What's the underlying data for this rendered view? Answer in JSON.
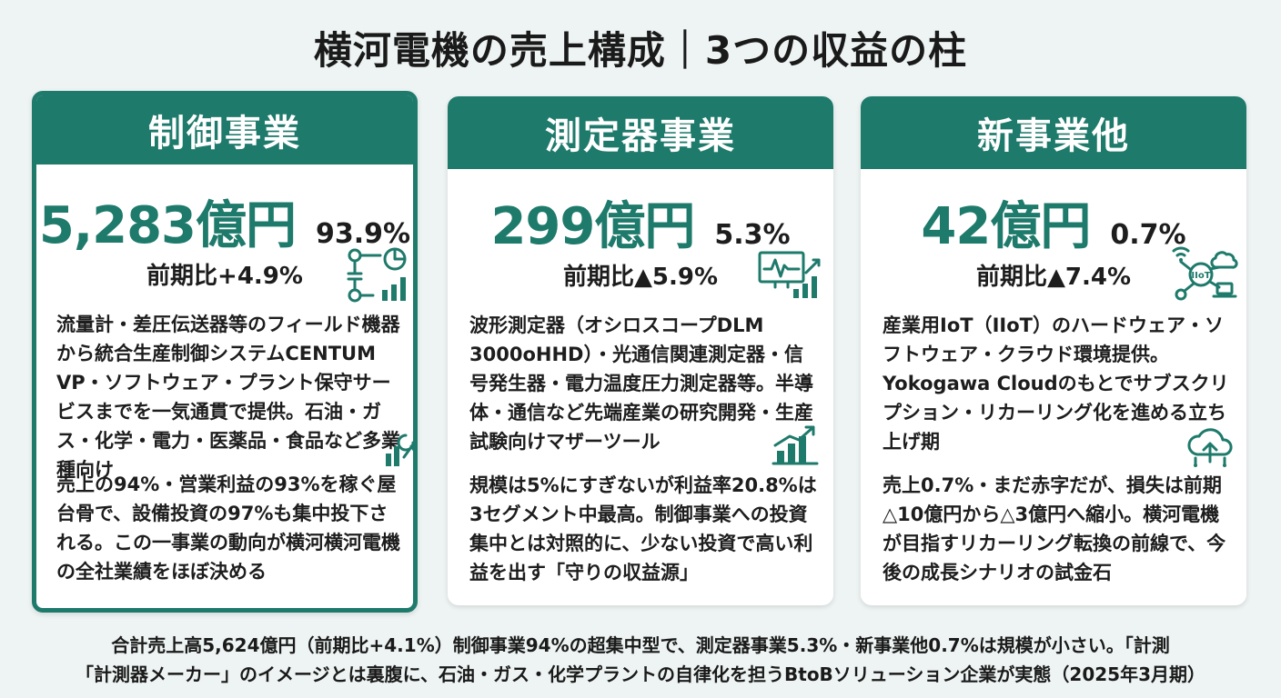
{
  "title": "横河電機の売上構成｜3つの収益の柱",
  "segments": [
    {
      "name": "制御事業",
      "sales": "5,283億円",
      "share": "93.9%",
      "growth": "前期比+4.9%",
      "description": "流量計・差圧伝送器等のフィールド機器から統合生産制御システムCENTUM VP・ソフトウェア・プラント保守サービスまでを一気通貫で提供。石油・ガス・化学・電力・医薬品・食品など多業種向け",
      "note": "売上の94%・営業利益の93%を稼ぐ屋台骨で、設備投資の97%も集中投下される。この一事業の動向が横河横河電機の全社業績をほぼ決める",
      "icons": [
        "flow-diagram-icon",
        "tools-icon"
      ]
    },
    {
      "name": "測定器事業",
      "sales": "299億円",
      "share": "5.3%",
      "growth": "前期比▲5.9%",
      "description": "波形測定器（オシロスコープDLM 3000oHHD）・光通信関連測定器・信号発生器・電力温度圧力測定器等。半導体・通信など先端産業の研究開発・生産試験向けマザーツール",
      "note": "規模は5%にすぎないが利益率20.8%は3セグメント中最高。制御事業への投資集中とは対照的に、少ない投資で高い利益を出す「守りの収益源」",
      "icons": [
        "waveform-monitor-icon",
        "growth-chart-icon"
      ]
    },
    {
      "name": "新事業他",
      "sales": "42億円",
      "share": "0.7%",
      "growth": "前期比▲7.4%",
      "description": "産業用IoT（IIoT）のハードウェア・ソフトウェア・クラウド環境提供。Yokogawa Cloudのもとでサブスクリプション・リカーリング化を進める立ち上げ期",
      "note": "売上0.7%・まだ赤字だが、損失は前期△10億円から△3億円へ縮小。横河電機が目指すリカーリング転換の前線で、今後の成長シナリオの試金石",
      "icons": [
        "iiot-network-icon",
        "cloud-upload-icon"
      ],
      "iot_label": "IIoT"
    }
  ],
  "footer": {
    "line1": "合計売上高5,624億円（前期比+4.1%）制御事業94%の超集中型で、測定器事業5.3%・新事業他0.7%は規模が小さい。「計測",
    "line2": "「計測器メーカー」のイメージとは裏腹に、石油・ガス・化学プラントの自律化を担うBtoBソリューション企業が実態（2025年3月期）"
  },
  "colors": {
    "accent": "#1e7a6b",
    "background": "#eef4f3",
    "card": "#ffffff",
    "text": "#1d1d1d"
  }
}
